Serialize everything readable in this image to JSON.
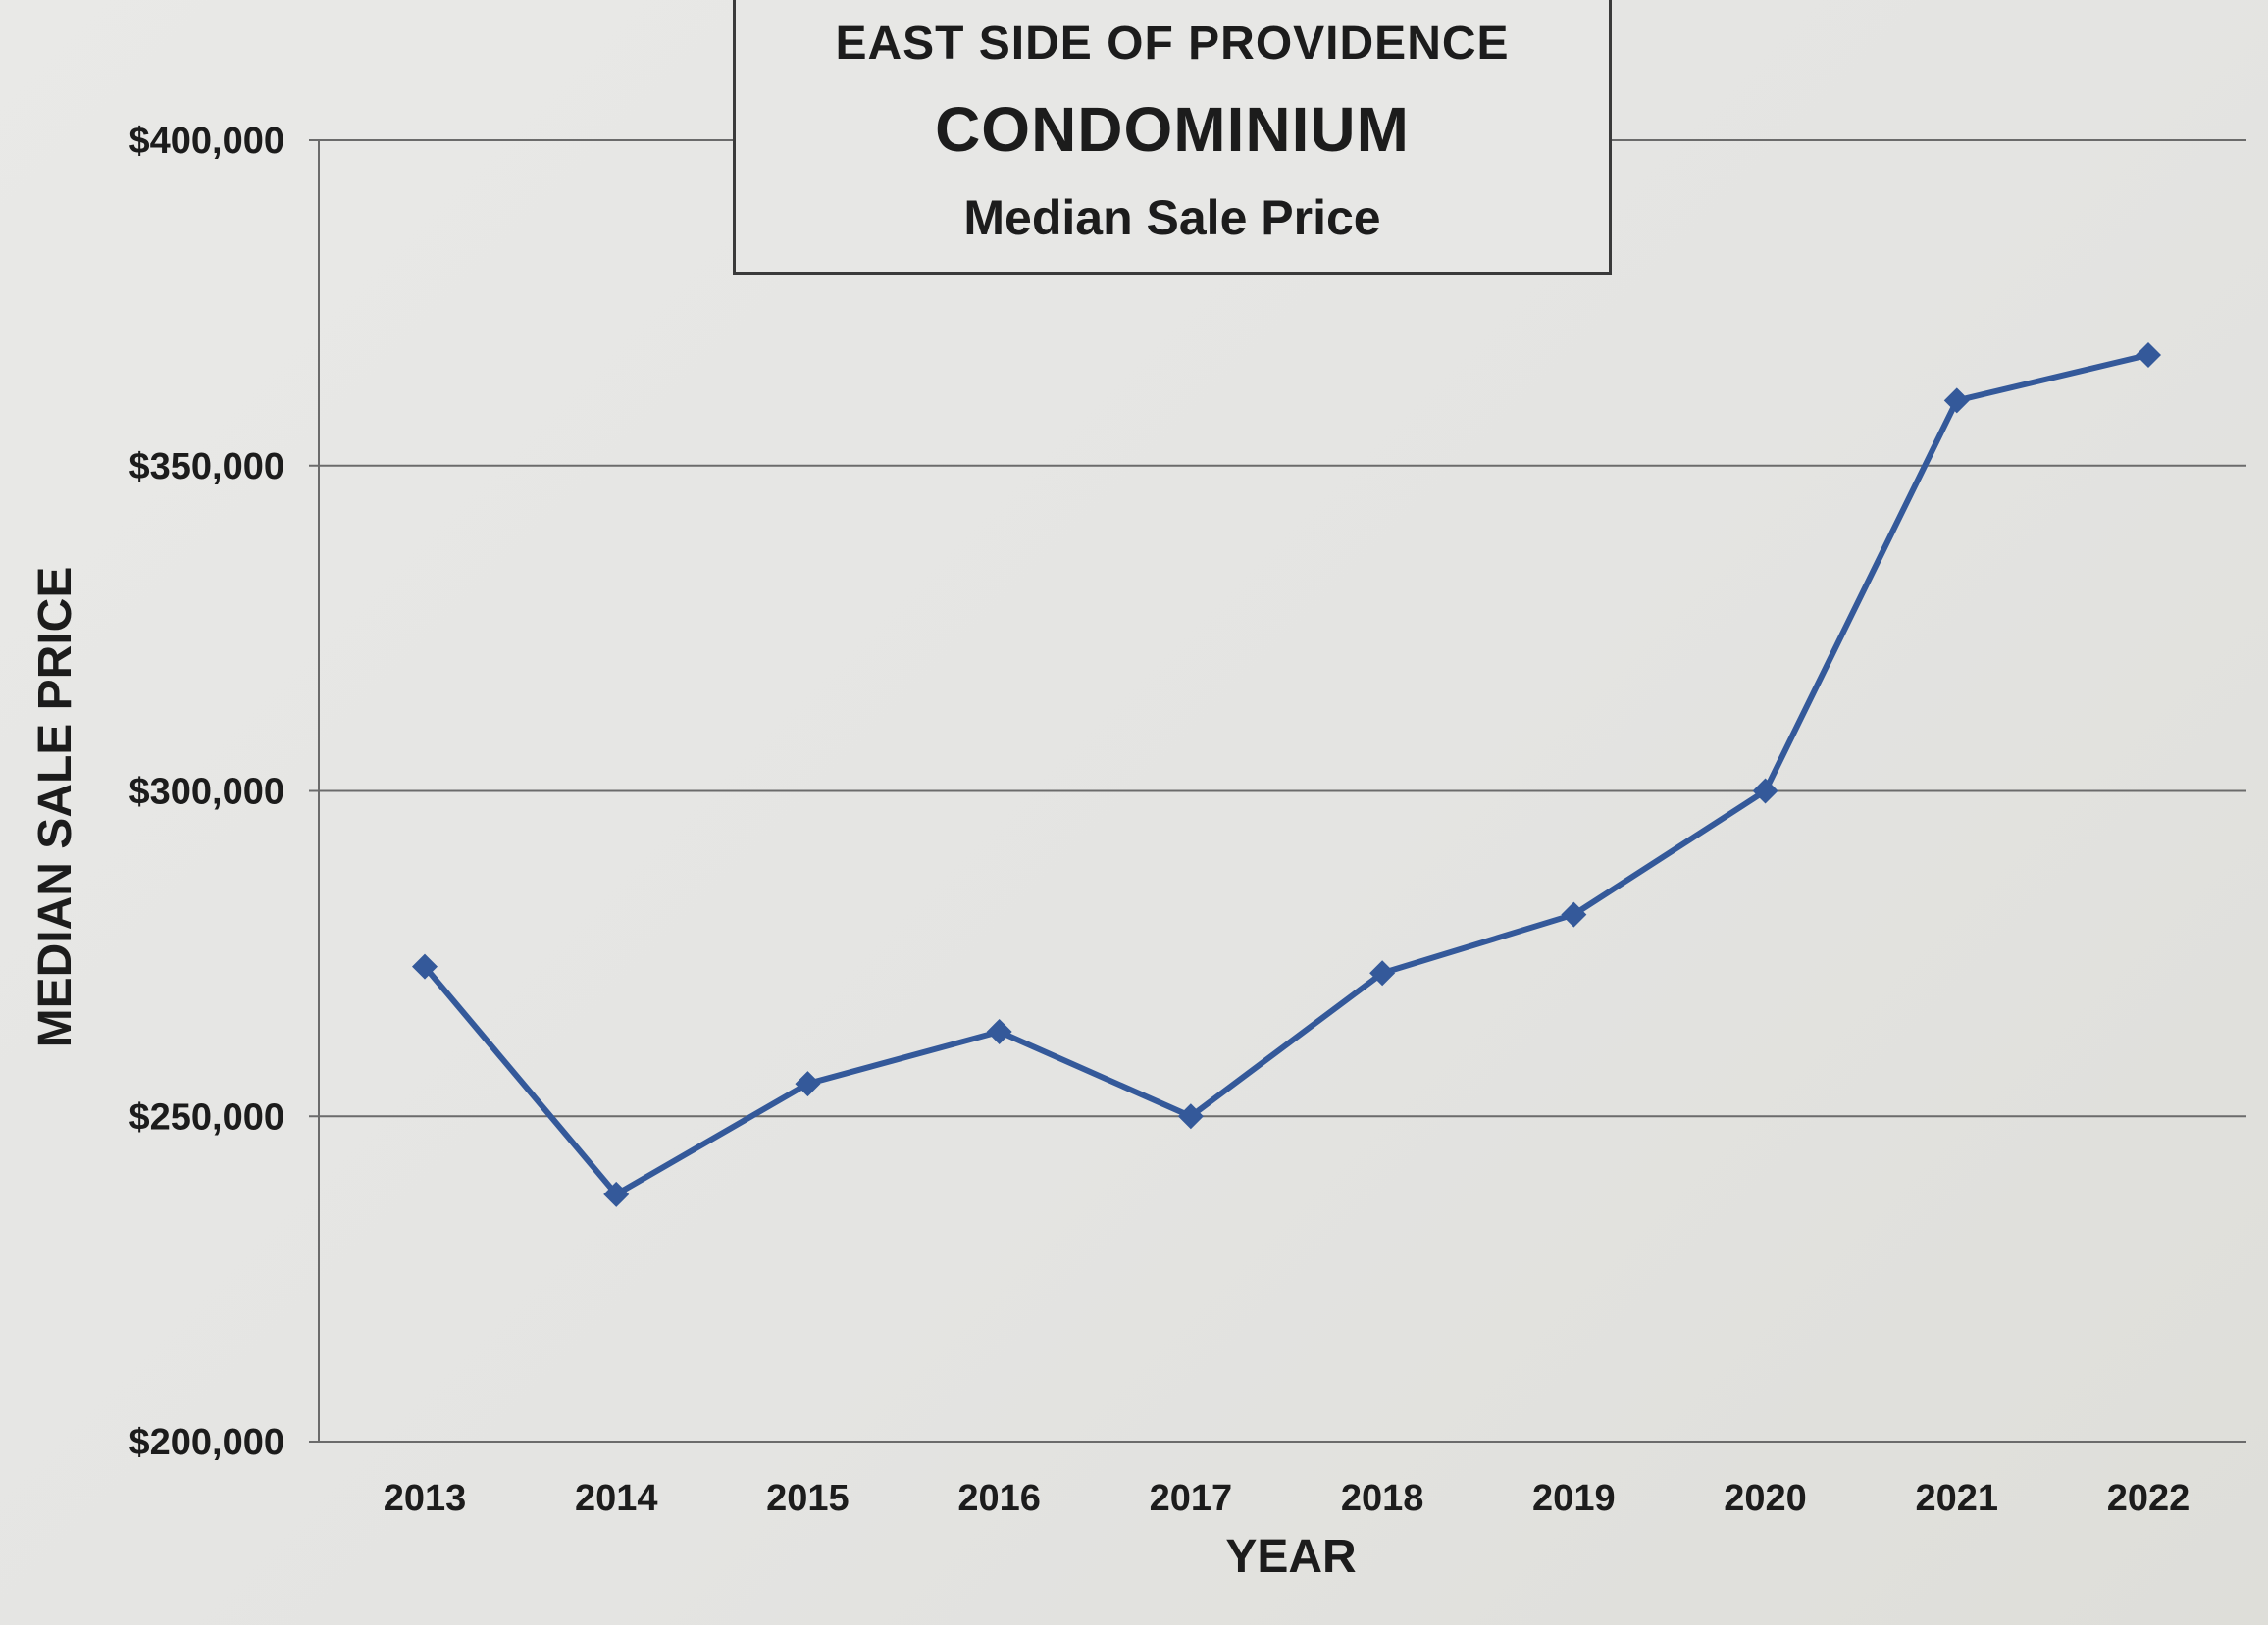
{
  "chart_data": {
    "type": "line",
    "title": "EAST SIDE OF PROVIDENCE",
    "subtitle": "CONDOMINIUM",
    "subtitle2": "Median Sale Price",
    "xlabel": "YEAR",
    "ylabel": "MEDIAN  SALE  PRICE",
    "categories": [
      "2013",
      "2014",
      "2015",
      "2016",
      "2017",
      "2018",
      "2019",
      "2020",
      "2021",
      "2022"
    ],
    "y_ticks": [
      400000,
      350000,
      300000,
      250000,
      200000
    ],
    "y_tick_labels": [
      "$400,000",
      "$350,000",
      "$300,000",
      "$250,000",
      "$200,000"
    ],
    "ylim": [
      200000,
      400000
    ],
    "grid": true,
    "series": [
      {
        "values": [
          273000,
          238000,
          255000,
          263000,
          250000,
          272000,
          281000,
          300000,
          360000,
          367000
        ],
        "color": "#34599a",
        "marker": "diamond"
      }
    ]
  }
}
